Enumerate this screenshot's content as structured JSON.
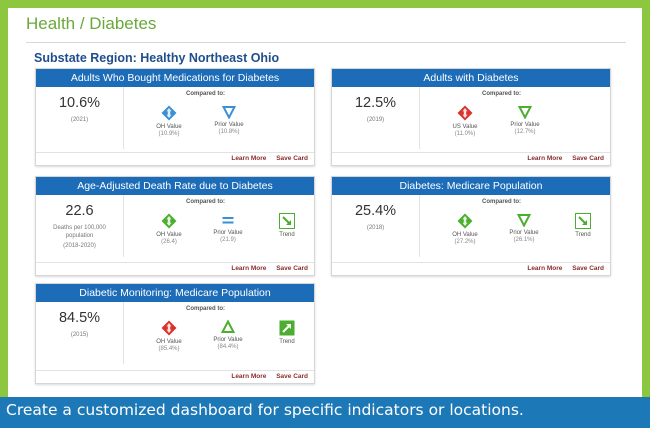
{
  "page": {
    "title": "Health / Diabetes",
    "region": "Substate Region: Healthy Northeast Ohio"
  },
  "cards": [
    {
      "title": "Adults Who Bought Medications for Diabetes",
      "value": "10.6%",
      "sub1": "(2021)",
      "sub2": "",
      "sub3": "",
      "compared_to": "Compared to:",
      "comparisons": [
        {
          "label": "OH Value",
          "value": "(10.9%)",
          "icon": "blue-diamond-icon"
        },
        {
          "label": "Prior Value",
          "value": "(10.8%)",
          "icon": "blue-down-triangle-icon"
        }
      ],
      "learn_more": "Learn More",
      "save_card": "Save Card"
    },
    {
      "title": "Adults with Diabetes",
      "value": "12.5%",
      "sub1": "(2019)",
      "sub2": "",
      "sub3": "",
      "compared_to": "Compared to:",
      "comparisons": [
        {
          "label": "US Value",
          "value": "(11.0%)",
          "icon": "red-diamond-icon"
        },
        {
          "label": "Prior Value",
          "value": "(12.7%)",
          "icon": "green-down-triangle-icon"
        }
      ],
      "learn_more": "Learn More",
      "save_card": "Save Card"
    },
    {
      "title": "Age-Adjusted Death Rate due to Diabetes",
      "value": "22.6",
      "sub1": "Deaths per 100,000",
      "sub2": "population",
      "sub3": "(2018-2020)",
      "compared_to": "Compared to:",
      "comparisons": [
        {
          "label": "OH Value",
          "value": "(26.4)",
          "icon": "green-diamond-icon"
        },
        {
          "label": "Prior Value",
          "value": "(21.9)",
          "icon": "blue-equals-icon"
        },
        {
          "label": "Trend",
          "value": "",
          "icon": "trend-down-icon"
        }
      ],
      "learn_more": "Learn More",
      "save_card": "Save Card"
    },
    {
      "title": "Diabetes: Medicare Population",
      "value": "25.4%",
      "sub1": "(2018)",
      "sub2": "",
      "sub3": "",
      "compared_to": "Compared to:",
      "comparisons": [
        {
          "label": "OH Value",
          "value": "(27.2%)",
          "icon": "green-diamond-icon"
        },
        {
          "label": "Prior Value",
          "value": "(26.1%)",
          "icon": "green-down-triangle-icon"
        },
        {
          "label": "Trend",
          "value": "",
          "icon": "trend-down-icon"
        }
      ],
      "learn_more": "Learn More",
      "save_card": "Save Card"
    },
    {
      "title": "Diabetic Monitoring: Medicare Population",
      "value": "84.5%",
      "sub1": "(2015)",
      "sub2": "",
      "sub3": "",
      "compared_to": "Compared to:",
      "comparisons": [
        {
          "label": "OH Value",
          "value": "(85.4%)",
          "icon": "red-diamond-icon"
        },
        {
          "label": "Prior Value",
          "value": "(84.4%)",
          "icon": "green-up-triangle-icon"
        },
        {
          "label": "Trend",
          "value": "",
          "icon": "trend-up-icon"
        }
      ],
      "learn_more": "Learn More",
      "save_card": "Save Card"
    }
  ],
  "banner": {
    "text": "Create a customized dashboard for specific indicators or locations."
  },
  "colors": {
    "accent_green": "#8dc63f",
    "header_blue": "#1c6cb8",
    "banner_blue": "#1d78b8",
    "link_red": "#8b2d2d"
  }
}
